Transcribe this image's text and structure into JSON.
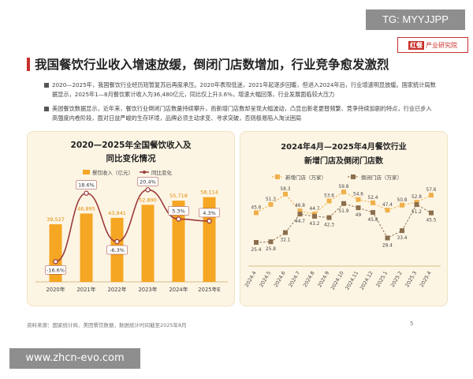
{
  "watermark_top": "TG: MYYJJPP",
  "logo": {
    "mark": "红餐",
    "text": "产业研究院"
  },
  "title": "我国餐饮行业收入增速放缓，倒闭门店数增加，行业竞争愈发激烈",
  "paragraphs": [
    "2020—2025年，我国餐饮行业经历短暂复苏后再度承压。2020年表现低迷，2021年起逐步回暖，但进入2024年后，行业增速明显放缓。国家统计局数据显示，2025年1—8月餐饮累计收入为36,480亿元，同比仅上升3.6%，增速大幅回落，行业发展面临较大压力",
    "美团餐饮数据显示，近年来，餐饮行业倒闭门店数量持续攀升，而新增门店数却呈现大幅波动，凸显出新老更替频繁、竞争持续加剧的特点，行业已步入高强度内卷阶段，面对日益严峻的生存环境，品牌必须主动求变、寻求突破，否则极易陷入淘汰困局"
  ],
  "source": "资料来源：国家统计局、美团餐饮数据，数据统计时间截至2025年8月",
  "page_number": "5",
  "watermark_bottom": "www.zhcn-evo.com",
  "chart_data": [
    {
      "type": "bar",
      "title": "2020—2025年全国餐饮收入及同比变化情况",
      "title_lines": [
        "2020—2025年全国餐饮收入及",
        "同比变化情况"
      ],
      "categories": [
        "2020年",
        "2021年",
        "2022年",
        "2023年",
        "2024年",
        "2025年E"
      ],
      "series": [
        {
          "name": "餐饮收入（亿元）",
          "kind": "bar",
          "values": [
            39527,
            46895,
            43941,
            52890,
            55718,
            58114
          ],
          "labels": [
            "39,527",
            "46,895",
            "43,941",
            "52,890",
            "55,718",
            "58,114"
          ],
          "color": "#f5a623"
        },
        {
          "name": "同比变化",
          "kind": "line",
          "values": [
            -16.6,
            18.6,
            -6.3,
            20.4,
            5.3,
            4.3
          ],
          "labels": [
            "-16.6%",
            "18.6%",
            "-6.3%",
            "20.4%",
            "5.3%",
            "4.3%"
          ],
          "color": "#9a3b3b"
        }
      ],
      "legend_position": "top",
      "grid": false
    },
    {
      "type": "line",
      "title": "2024年4月—2025年4月餐饮行业新增门店及倒闭门店数",
      "title_lines": [
        "2024年4月—2025年4月餐饮行业",
        "新增门店及倒闭门店数"
      ],
      "categories": [
        "2024.4",
        "2024.5",
        "2024.6",
        "2024.7",
        "2024.8",
        "2024.9",
        "2024.10",
        "2024.11",
        "2024.12",
        "2025.1",
        "2025.2",
        "2025.3",
        "2025.4"
      ],
      "series": [
        {
          "name": "新增门店（万家）",
          "values": [
            45.6,
            51.3,
            58.3,
            46.8,
            44.7,
            53.6,
            59.8,
            54.6,
            52.4,
            47.4,
            50.8,
            52.8,
            57.6
          ],
          "color": "#f0b04a",
          "style": "dashed"
        },
        {
          "name": "倒闭门店（万家）",
          "values": [
            25.4,
            25.8,
            32.1,
            44.7,
            43.2,
            42.3,
            51.9,
            49.0,
            45.8,
            28.4,
            33.4,
            51.2,
            45.5
          ],
          "color": "#8b6f4e",
          "style": "dashed"
        }
      ],
      "legend_position": "top",
      "grid": false
    }
  ]
}
